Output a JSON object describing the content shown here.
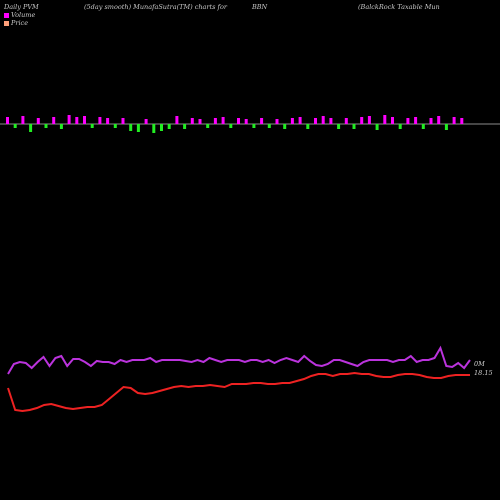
{
  "header": {
    "left": "Daily PVM",
    "mid": "(5day smooth) MunafaSutra(TM) charts for",
    "symbol": "BBN",
    "right": "(BalckRock Taxable  Mun"
  },
  "legend": [
    {
      "label": "Volume",
      "color": "#ff00ff"
    },
    {
      "label": "Price",
      "color": "#ffa07a"
    }
  ],
  "colors": {
    "up": "#ff00ff",
    "down": "#22ee22",
    "price": "#ee2222",
    "pvm": "#bb33dd",
    "axis": "#bbbbbb"
  },
  "labels": {
    "zero": "0M",
    "price": "18.15"
  },
  "chart_data": {
    "type": "line",
    "volume_bars": [
      {
        "dir": "up",
        "h": 7
      },
      {
        "dir": "down",
        "h": 4
      },
      {
        "dir": "up",
        "h": 8
      },
      {
        "dir": "down",
        "h": 8
      },
      {
        "dir": "up",
        "h": 6
      },
      {
        "dir": "down",
        "h": 4
      },
      {
        "dir": "up",
        "h": 7
      },
      {
        "dir": "down",
        "h": 5
      },
      {
        "dir": "up",
        "h": 9
      },
      {
        "dir": "up",
        "h": 7
      },
      {
        "dir": "up",
        "h": 8
      },
      {
        "dir": "down",
        "h": 4
      },
      {
        "dir": "up",
        "h": 7
      },
      {
        "dir": "up",
        "h": 6
      },
      {
        "dir": "down",
        "h": 4
      },
      {
        "dir": "up",
        "h": 6
      },
      {
        "dir": "down",
        "h": 7
      },
      {
        "dir": "down",
        "h": 8
      },
      {
        "dir": "up",
        "h": 5
      },
      {
        "dir": "down",
        "h": 9
      },
      {
        "dir": "down",
        "h": 7
      },
      {
        "dir": "down",
        "h": 5
      },
      {
        "dir": "up",
        "h": 8
      },
      {
        "dir": "down",
        "h": 5
      },
      {
        "dir": "up",
        "h": 6
      },
      {
        "dir": "up",
        "h": 5
      },
      {
        "dir": "down",
        "h": 4
      },
      {
        "dir": "up",
        "h": 6
      },
      {
        "dir": "up",
        "h": 7
      },
      {
        "dir": "down",
        "h": 4
      },
      {
        "dir": "up",
        "h": 6
      },
      {
        "dir": "up",
        "h": 5
      },
      {
        "dir": "down",
        "h": 4
      },
      {
        "dir": "up",
        "h": 6
      },
      {
        "dir": "down",
        "h": 4
      },
      {
        "dir": "up",
        "h": 5
      },
      {
        "dir": "down",
        "h": 5
      },
      {
        "dir": "up",
        "h": 6
      },
      {
        "dir": "up",
        "h": 7
      },
      {
        "dir": "down",
        "h": 5
      },
      {
        "dir": "up",
        "h": 6
      },
      {
        "dir": "up",
        "h": 8
      },
      {
        "dir": "up",
        "h": 6
      },
      {
        "dir": "down",
        "h": 5
      },
      {
        "dir": "up",
        "h": 6
      },
      {
        "dir": "down",
        "h": 5
      },
      {
        "dir": "up",
        "h": 7
      },
      {
        "dir": "up",
        "h": 8
      },
      {
        "dir": "down",
        "h": 6
      },
      {
        "dir": "up",
        "h": 9
      },
      {
        "dir": "up",
        "h": 7
      },
      {
        "dir": "down",
        "h": 5
      },
      {
        "dir": "up",
        "h": 6
      },
      {
        "dir": "up",
        "h": 7
      },
      {
        "dir": "down",
        "h": 5
      },
      {
        "dir": "up",
        "h": 6
      },
      {
        "dir": "up",
        "h": 8
      },
      {
        "dir": "down",
        "h": 6
      },
      {
        "dir": "up",
        "h": 7
      },
      {
        "dir": "up",
        "h": 6
      }
    ],
    "pvm_line": [
      374,
      364,
      362,
      363,
      368,
      362,
      357,
      366,
      358,
      356,
      366,
      359,
      359,
      362,
      366,
      361,
      362,
      362,
      364,
      360,
      362,
      360,
      360,
      360,
      358,
      362,
      360,
      360,
      360,
      360,
      361,
      362,
      360,
      362,
      358,
      360,
      362,
      360,
      360,
      360,
      362,
      360,
      360,
      362,
      360,
      363,
      360,
      358,
      360,
      362,
      356,
      361,
      365,
      366,
      364,
      360,
      360,
      362,
      364,
      366,
      362,
      360,
      360,
      360,
      360,
      362,
      360,
      360,
      356,
      362,
      360,
      360,
      358,
      348,
      366,
      367,
      363,
      368,
      360
    ],
    "price_line": [
      388,
      410,
      411,
      410,
      408,
      405,
      404,
      406,
      408,
      409,
      408,
      407,
      407,
      405,
      399,
      393,
      387,
      388,
      393,
      394,
      393,
      391,
      389,
      387,
      386,
      387,
      386,
      386,
      385,
      386,
      387,
      384,
      384,
      384,
      383,
      383,
      384,
      384,
      383,
      383,
      381,
      379,
      376,
      374,
      374,
      376,
      374,
      374,
      373,
      374,
      374,
      376,
      377,
      377,
      375,
      374,
      374,
      375,
      377,
      378,
      378,
      376,
      375,
      375,
      375
    ]
  }
}
